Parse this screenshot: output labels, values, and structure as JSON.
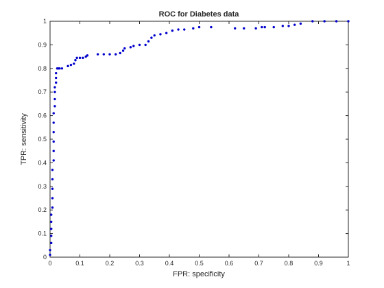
{
  "chart_data": {
    "type": "scatter",
    "title": "ROC for Diabetes data",
    "xlabel": "FPR: specificity",
    "ylabel": "TPR: sensitivity",
    "xlim": [
      0,
      1
    ],
    "ylim": [
      0,
      1
    ],
    "xticks": [
      "0",
      "0.1",
      "0.2",
      "0.3",
      "0.4",
      "0.5",
      "0.6",
      "0.7",
      "0.8",
      "0.9",
      "1"
    ],
    "yticks": [
      "0",
      "0.1",
      "0.2",
      "0.3",
      "0.4",
      "0.5",
      "0.6",
      "0.7",
      "0.8",
      "0.9",
      "1"
    ],
    "grid": false,
    "legend": "none",
    "marker_color": "#0000cc",
    "series": [
      {
        "x": [
          0,
          0,
          0.004,
          0.004,
          0.004,
          0.004,
          0.004,
          0.008,
          0.008,
          0.008,
          0.008,
          0.008,
          0.012,
          0.012,
          0.012,
          0.012,
          0.012,
          0.012,
          0.016,
          0.016,
          0.016,
          0.016,
          0.02,
          0.02,
          0.02,
          0.024,
          0.028,
          0.032,
          0.04,
          0.06,
          0.07,
          0.08,
          0.085,
          0.09,
          0.1,
          0.11,
          0.12,
          0.125,
          0.16,
          0.18,
          0.2,
          0.22,
          0.235,
          0.245,
          0.25,
          0.27,
          0.28,
          0.3,
          0.32,
          0.33,
          0.34,
          0.35,
          0.37,
          0.39,
          0.41,
          0.43,
          0.45,
          0.48,
          0.5,
          0.54,
          0.62,
          0.65,
          0.69,
          0.71,
          0.72,
          0.75,
          0.78,
          0.8,
          0.82,
          0.84,
          0.88,
          0.92,
          0.96,
          1.0
        ],
        "y": [
          0.01,
          0.03,
          0.06,
          0.09,
          0.12,
          0.15,
          0.18,
          0.21,
          0.25,
          0.29,
          0.33,
          0.37,
          0.41,
          0.45,
          0.49,
          0.53,
          0.57,
          0.61,
          0.64,
          0.67,
          0.7,
          0.72,
          0.74,
          0.76,
          0.78,
          0.8,
          0.8,
          0.8,
          0.8,
          0.81,
          0.815,
          0.82,
          0.835,
          0.845,
          0.845,
          0.845,
          0.85,
          0.855,
          0.86,
          0.86,
          0.86,
          0.86,
          0.865,
          0.875,
          0.885,
          0.89,
          0.895,
          0.9,
          0.9,
          0.915,
          0.93,
          0.94,
          0.945,
          0.95,
          0.96,
          0.965,
          0.965,
          0.97,
          0.975,
          0.975,
          0.97,
          0.97,
          0.97,
          0.975,
          0.975,
          0.975,
          0.98,
          0.98,
          0.985,
          0.99,
          1.0,
          1.0,
          1.0,
          1.0
        ]
      }
    ]
  }
}
